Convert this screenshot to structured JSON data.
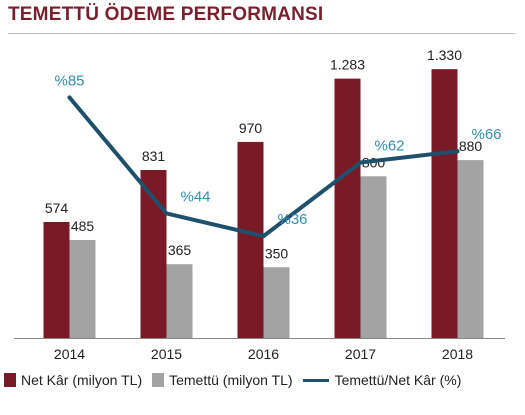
{
  "title": "TEMETTÜ ÖDEME PERFORMANSI",
  "colors": {
    "title": "#7b1f2c",
    "net_kar": "#7a1a27",
    "temettu": "#a3a3a3",
    "ratio_line": "#1e4f6b",
    "ratio_label": "#2f8fb1"
  },
  "legend": {
    "net_kar": "Net Kâr (milyon TL)",
    "temettu": "Temettü (milyon TL)",
    "ratio": "Temettü/Net Kâr (%)"
  },
  "chart_data": {
    "type": "bar",
    "categories": [
      "2014",
      "2015",
      "2016",
      "2017",
      "2018"
    ],
    "series": [
      {
        "name": "Net Kâr (milyon TL)",
        "values": [
          574,
          831,
          970,
          1283,
          1330
        ],
        "labels": [
          "574",
          "831",
          "970",
          "1.283",
          "1.330"
        ]
      },
      {
        "name": "Temettü (milyon TL)",
        "values": [
          485,
          365,
          350,
          800,
          880
        ],
        "labels": [
          "485",
          "365",
          "350",
          "800",
          "880"
        ]
      }
    ],
    "line_series": {
      "name": "Temettü/Net Kâr (%)",
      "values": [
        85,
        44,
        36,
        62,
        66
      ],
      "labels": [
        "%85",
        "%44",
        "%36",
        "%62",
        "%66"
      ]
    },
    "ylim": [
      0,
      1400
    ],
    "line_ylim": [
      0,
      100
    ],
    "grid": false,
    "legend_position": "bottom"
  }
}
